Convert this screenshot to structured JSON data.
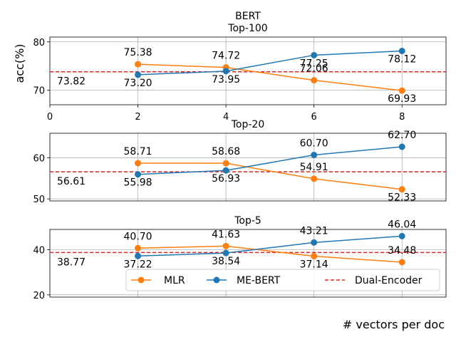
{
  "figure": {
    "suptitle": "BERT",
    "xlabel": "# vectors per doc",
    "ylabel": "acc(%)"
  },
  "legend": {
    "mlr": "MLR",
    "mebert": "ME-BERT",
    "dual": "Dual-Encoder"
  },
  "colors": {
    "mlr": "#ff7f0e",
    "mebert": "#1f77b4",
    "dual": "#d62728"
  },
  "chart_data": [
    {
      "type": "line",
      "title": "Top-100",
      "x": [
        2,
        4,
        6,
        8
      ],
      "xlim": [
        0,
        9
      ],
      "xticks": [
        "0",
        "2",
        "4",
        "6",
        "8"
      ],
      "ylim": [
        67,
        81
      ],
      "yticks": [
        "70",
        "80"
      ],
      "ytick_values": [
        70,
        80
      ],
      "series": [
        {
          "name": "MLR",
          "values": [
            75.38,
            74.72,
            72.06,
            69.93
          ],
          "labels": [
            "75.38",
            "74.72",
            "72.06",
            "69.93"
          ]
        },
        {
          "name": "ME-BERT",
          "values": [
            73.2,
            73.95,
            77.25,
            78.12
          ],
          "labels": [
            "73.20",
            "73.95",
            "77.25",
            "78.12"
          ]
        }
      ],
      "baseline": {
        "name": "Dual-Encoder",
        "value": 73.82,
        "label": "73.82"
      }
    },
    {
      "type": "line",
      "title": "Top-20",
      "x": [
        2,
        4,
        6,
        8
      ],
      "xlim": [
        0,
        9
      ],
      "ylim": [
        49.5,
        66
      ],
      "yticks": [
        "50",
        "60"
      ],
      "ytick_values": [
        50,
        60
      ],
      "series": [
        {
          "name": "MLR",
          "values": [
            58.71,
            58.68,
            54.91,
            52.33
          ],
          "labels": [
            "58.71",
            "58.68",
            "54.91",
            "52.33"
          ]
        },
        {
          "name": "ME-BERT",
          "values": [
            55.98,
            56.93,
            60.7,
            62.7
          ],
          "labels": [
            "55.98",
            "56.93",
            "60.70",
            "62.70"
          ]
        }
      ],
      "baseline": {
        "name": "Dual-Encoder",
        "value": 56.61,
        "label": "56.61"
      }
    },
    {
      "type": "line",
      "title": "Top-5",
      "x": [
        2,
        4,
        6,
        8
      ],
      "xlim": [
        0,
        9
      ],
      "ylim": [
        19,
        49
      ],
      "yticks": [
        "20",
        "40"
      ],
      "ytick_values": [
        20,
        40
      ],
      "series": [
        {
          "name": "MLR",
          "values": [
            40.7,
            41.63,
            37.14,
            34.48
          ],
          "labels": [
            "40.70",
            "41.63",
            "37.14",
            "34.48"
          ]
        },
        {
          "name": "ME-BERT",
          "values": [
            37.22,
            38.54,
            43.21,
            46.04
          ],
          "labels": [
            "37.22",
            "38.54",
            "43.21",
            "46.04"
          ]
        }
      ],
      "baseline": {
        "name": "Dual-Encoder",
        "value": 38.77,
        "label": "38.77"
      }
    }
  ]
}
